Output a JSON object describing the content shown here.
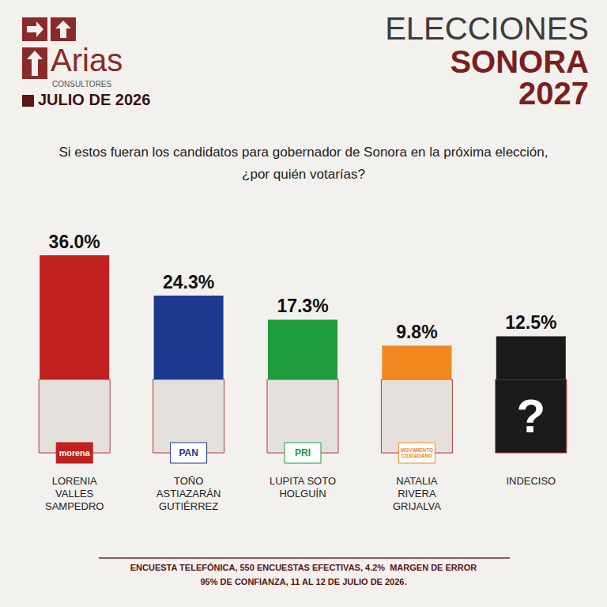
{
  "header": {
    "brand": "Arias",
    "brand_sub": "CONSULTORES",
    "date": "JULIO DE 2026",
    "title_lines": [
      "ELECCIONES",
      "SONORA",
      "2027"
    ]
  },
  "chart_data": {
    "type": "bar",
    "title": "Si estos fueran los candidatos para gobernador de Sonora en la próxima elección, ¿por quién votarías?",
    "categories": [
      "LORENIA VALLES SAMPEDRO",
      "TOÑO ASTIAZARÁN GUTIÉRREZ",
      "LUPITA SOTO HOLGUÍN",
      "NATALIA RIVERA GRIJALVA",
      "INDECISO"
    ],
    "values": [
      36.0,
      24.3,
      17.3,
      9.8,
      12.5
    ],
    "value_labels": [
      "36.0%",
      "24.3%",
      "17.3%",
      "9.8%",
      "12.5%"
    ],
    "colors": [
      "#c0201e",
      "#1d3a8f",
      "#1e9b3c",
      "#f0881f",
      "#1a1a1a"
    ],
    "ylim": [
      0,
      36
    ],
    "data_labels": true,
    "tick_labels": false,
    "grid": false
  },
  "badges": [
    "morena",
    "PAN",
    "PRI",
    "MOVIMIENTO CIUDADANO",
    "?"
  ],
  "footnote": [
    "ENCUESTA TELEFÓNICA, 550 ENCUESTAS EFECTIVAS, 4.2%  MARGEN DE ERROR",
    "95% DE CONFIANZA, 11 AL 12 DE JULIO DE 2026."
  ]
}
